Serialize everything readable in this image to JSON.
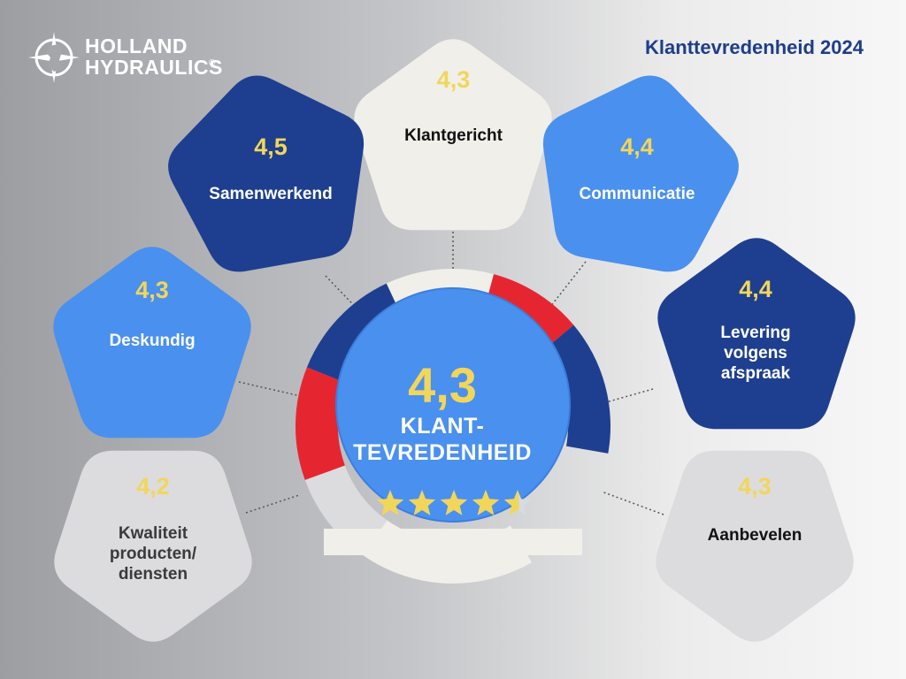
{
  "brand": {
    "line1": "HOLLAND",
    "line2": "HYDRAULICS",
    "registered": "®"
  },
  "title": "Klanttevredenheid 2024",
  "center": {
    "score": "4,3",
    "label_line1": "KLANT-",
    "label_line2": "TEVREDENHEID",
    "stars": 4.5
  },
  "categories": [
    {
      "id": "klantgericht",
      "score": "4,3",
      "label": [
        "Klantgericht"
      ],
      "color": "#f0efe9",
      "text_color": "#111111"
    },
    {
      "id": "communicatie",
      "score": "4,4",
      "label": [
        "Communicatie"
      ],
      "color": "#4a90ee",
      "text_color": "#ffffff"
    },
    {
      "id": "levering",
      "score": "4,4",
      "label": [
        "Levering",
        "volgens",
        "afspraak"
      ],
      "color": "#1e3f8f",
      "text_color": "#ffffff"
    },
    {
      "id": "aanbevelen",
      "score": "4,3",
      "label": [
        "Aanbevelen"
      ],
      "color": "#dcdcde",
      "text_color": "#111111"
    },
    {
      "id": "kwaliteit",
      "score": "4,2",
      "label": [
        "Kwaliteit",
        "producten/",
        "diensten"
      ],
      "color": "#dcdcde",
      "text_color": "#3a3a3a"
    },
    {
      "id": "deskundig",
      "score": "4,3",
      "label": [
        "Deskundig"
      ],
      "color": "#4a90ee",
      "text_color": "#ffffff"
    },
    {
      "id": "samenwerkend",
      "score": "4,5",
      "label": [
        "Samenwerkend"
      ],
      "color": "#1e3f8f",
      "text_color": "#ffffff"
    }
  ],
  "colors": {
    "accent_yellow": "#f2d65a",
    "navy": "#1e3f8f",
    "blue": "#4a90ee",
    "red": "#e52630",
    "light": "#f0efe9",
    "grey": "#dcdcde"
  }
}
